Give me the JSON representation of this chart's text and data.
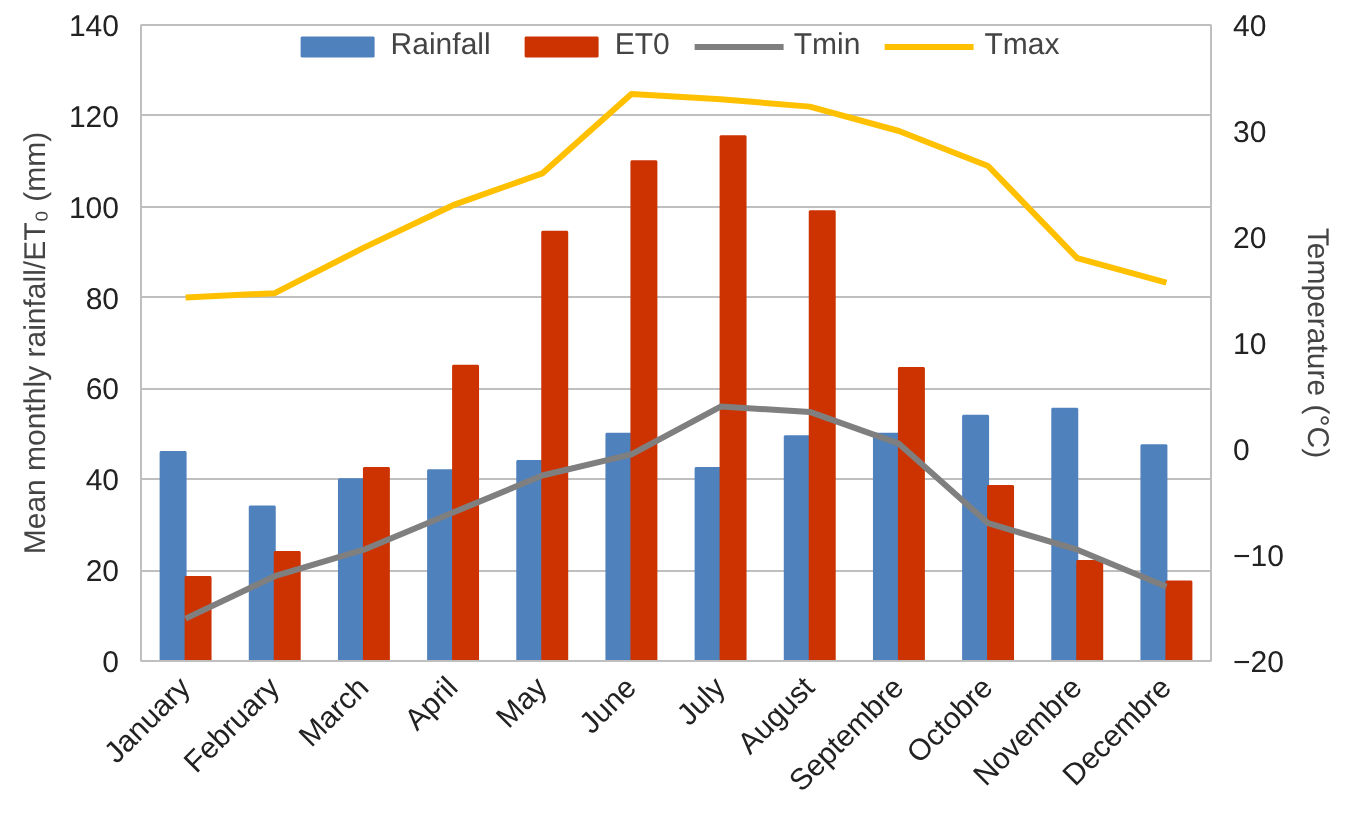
{
  "chart_data": {
    "type": "bar",
    "categories": [
      "January",
      "February",
      "March",
      "April",
      "May",
      "June",
      "July",
      "August",
      "Septembre",
      "Octobre",
      "Novembre",
      "Decembre"
    ],
    "ylabel": "Mean monthly rainfall/ET₀ (mm)",
    "y2label": "Temperature (°C)",
    "ylim": [
      0,
      140
    ],
    "yticks": [
      0,
      20,
      40,
      60,
      80,
      100,
      120,
      140
    ],
    "y2lim": [
      -20,
      40
    ],
    "y2ticks": [
      -20,
      -10,
      0,
      10,
      20,
      30,
      40
    ],
    "grid": "y",
    "legend": "top",
    "series": [
      {
        "name": "Rainfall",
        "color": "#4f81bd",
        "values": [
          46,
          34,
          40,
          42,
          44,
          50,
          42.5,
          49.5,
          50,
          54,
          55.5,
          47.5
        ]
      },
      {
        "name": "ET0",
        "color": "#cc3300",
        "values": [
          18.5,
          24,
          42.5,
          65,
          94.5,
          110,
          115.5,
          99,
          64.5,
          38.5,
          22,
          17.5
        ]
      },
      {
        "name": "Tmin",
        "type": "line",
        "axis": "y2",
        "color": "#7f7f7f",
        "values": [
          -16,
          -12,
          -9.5,
          -6,
          -2.5,
          -0.5,
          4,
          3.5,
          0.5,
          -7,
          -9.5,
          -13
        ]
      },
      {
        "name": "Tmax",
        "type": "line",
        "axis": "y2",
        "color": "#ffc000",
        "values": [
          14.3,
          14.7,
          19,
          23,
          26,
          33.5,
          33,
          32.3,
          30,
          26.7,
          18,
          15.7
        ]
      }
    ]
  }
}
